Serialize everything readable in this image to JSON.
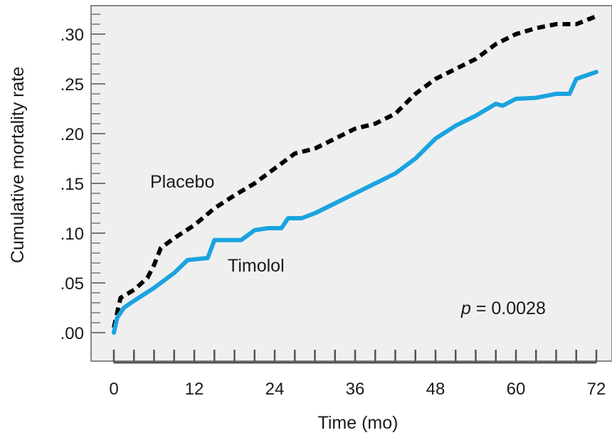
{
  "chart_data": {
    "type": "line",
    "title": "",
    "xlabel": "Time (mo)",
    "ylabel": "Cumulative mortality rate",
    "xlim": [
      0,
      72
    ],
    "ylim": [
      0.0,
      0.32
    ],
    "x_ticks": [
      0,
      12,
      24,
      36,
      48,
      60,
      72
    ],
    "x_tick_labels": [
      "0",
      "12",
      "24",
      "36",
      "48",
      "60",
      "72"
    ],
    "y_ticks": [
      0.0,
      0.05,
      0.1,
      0.15,
      0.2,
      0.25,
      0.3
    ],
    "y_tick_labels": [
      ".00",
      ".05",
      ".10",
      ".15",
      ".20",
      ".25",
      ".30"
    ],
    "grid": false,
    "legend": "inline",
    "annotation": {
      "prefix": "p",
      "text": " = 0.0028"
    },
    "series": [
      {
        "name": "Placebo",
        "color": "#000000",
        "style": "dashed",
        "x": [
          0,
          0.5,
          1,
          3,
          5,
          6,
          7,
          9,
          12,
          15,
          18,
          21,
          24,
          27,
          30,
          33,
          36,
          39,
          42,
          45,
          48,
          51,
          54,
          57,
          60,
          63,
          66,
          69,
          72
        ],
        "y": [
          0.005,
          0.02,
          0.035,
          0.043,
          0.055,
          0.068,
          0.085,
          0.095,
          0.108,
          0.125,
          0.138,
          0.15,
          0.165,
          0.18,
          0.185,
          0.195,
          0.205,
          0.21,
          0.22,
          0.24,
          0.255,
          0.265,
          0.275,
          0.29,
          0.3,
          0.306,
          0.31,
          0.31,
          0.318
        ]
      },
      {
        "name": "Timolol",
        "color": "#1aa3e0",
        "style": "solid",
        "x": [
          0,
          0.5,
          1.5,
          3,
          6,
          9,
          11,
          14,
          15,
          19,
          21,
          23,
          25,
          26,
          28,
          30,
          33,
          36,
          39,
          42,
          45,
          48,
          51,
          54,
          57,
          58,
          60,
          63,
          66,
          68,
          69,
          72
        ],
        "y": [
          0.0,
          0.015,
          0.025,
          0.032,
          0.045,
          0.06,
          0.073,
          0.075,
          0.093,
          0.093,
          0.103,
          0.105,
          0.105,
          0.115,
          0.115,
          0.12,
          0.13,
          0.14,
          0.15,
          0.16,
          0.175,
          0.195,
          0.208,
          0.218,
          0.23,
          0.228,
          0.235,
          0.236,
          0.24,
          0.24,
          0.255,
          0.262
        ]
      }
    ]
  }
}
